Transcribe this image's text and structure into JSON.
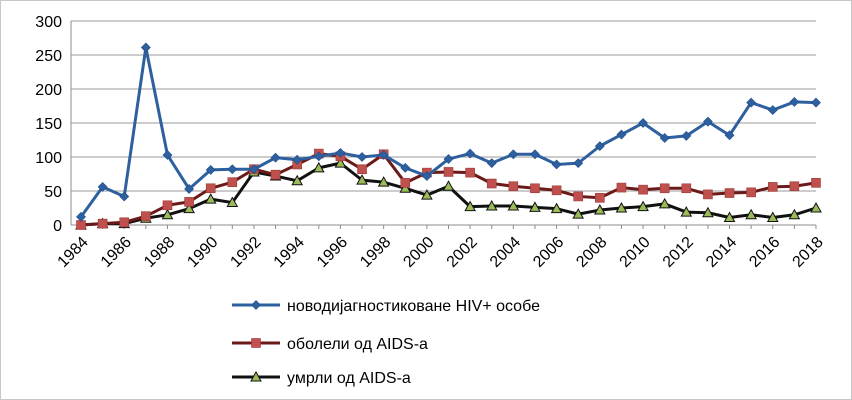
{
  "chart_data": {
    "type": "line",
    "title": "",
    "xlabel": "",
    "ylabel": "",
    "ylim": [
      0,
      300
    ],
    "yticks": [
      0,
      50,
      100,
      150,
      200,
      250,
      300
    ],
    "x": [
      1984,
      1985,
      1986,
      1987,
      1988,
      1989,
      1990,
      1991,
      1992,
      1993,
      1994,
      1995,
      1996,
      1997,
      1998,
      1999,
      2000,
      2001,
      2002,
      2003,
      2004,
      2005,
      2006,
      2007,
      2008,
      2009,
      2010,
      2011,
      2012,
      2013,
      2014,
      2015,
      2016,
      2017,
      2018
    ],
    "xtick_labels": [
      "1984",
      "1986",
      "1988",
      "1990",
      "1992",
      "1994",
      "1996",
      "1998",
      "2000",
      "2002",
      "2004",
      "2006",
      "2008",
      "2010",
      "2012",
      "2014",
      "2016",
      "2018"
    ],
    "grid": true,
    "legend": "bottom",
    "series": [
      {
        "name": "новодијагностиковане HIV+ особе",
        "color": "#2e5f9e",
        "marker": "diamond",
        "values": [
          12,
          56,
          42,
          261,
          103,
          53,
          81,
          82,
          82,
          99,
          96,
          101,
          106,
          100,
          103,
          84,
          72,
          97,
          105,
          91,
          104,
          104,
          89,
          91,
          116,
          133,
          150,
          128,
          131,
          152,
          132,
          180,
          169,
          181,
          180
        ]
      },
      {
        "name": "оболели од AIDS-а",
        "color": "#c0504d",
        "line_color": "#6b1a1a",
        "marker": "square",
        "values": [
          0,
          2,
          4,
          13,
          29,
          34,
          54,
          63,
          82,
          74,
          89,
          105,
          101,
          82,
          104,
          62,
          77,
          78,
          77,
          61,
          57,
          54,
          51,
          42,
          40,
          55,
          52,
          54,
          54,
          45,
          47,
          48,
          56,
          57,
          62
        ]
      },
      {
        "name": "умрли од AIDS-а",
        "color": "#9bbb59",
        "line_color": "#111111",
        "marker": "triangle",
        "values": [
          0,
          2,
          2,
          10,
          15,
          24,
          38,
          33,
          78,
          72,
          65,
          84,
          91,
          66,
          63,
          54,
          44,
          57,
          27,
          28,
          28,
          26,
          24,
          16,
          22,
          25,
          27,
          31,
          19,
          18,
          11,
          15,
          11,
          15,
          25
        ]
      }
    ]
  }
}
